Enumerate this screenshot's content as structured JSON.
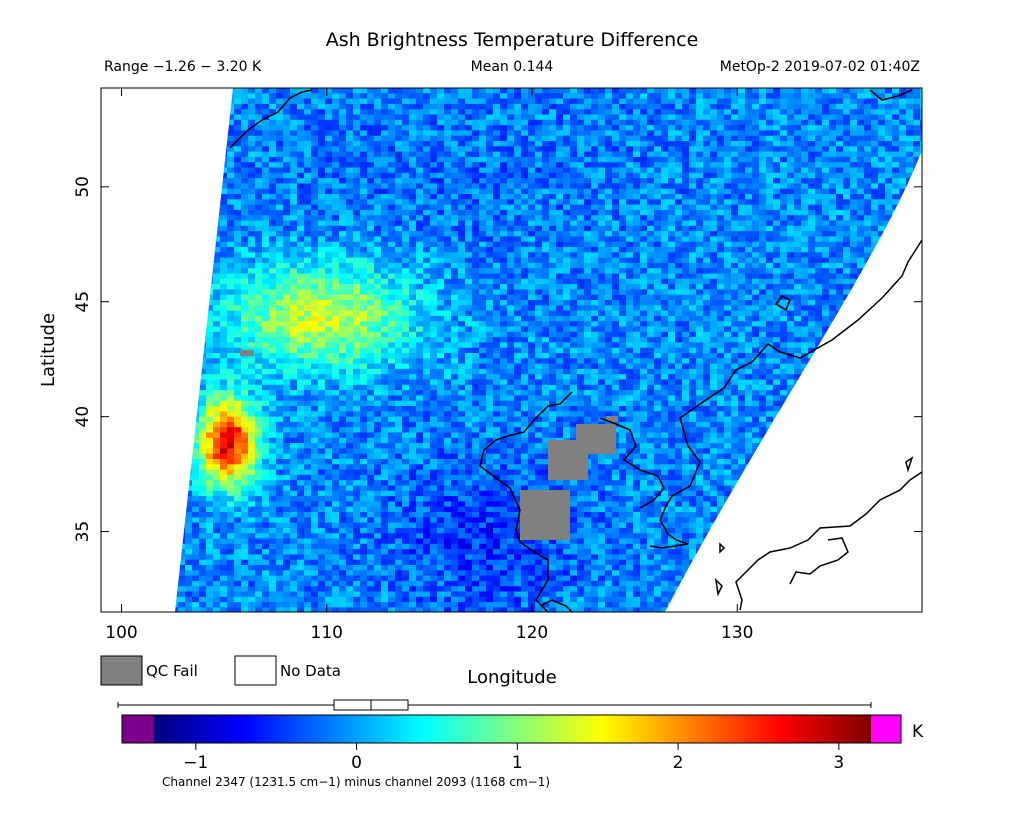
{
  "header": {
    "title": "Ash Brightness Temperature Difference",
    "range_text": "Range −1.26 − 3.20 K",
    "mean_text": "Mean 0.144",
    "satellite_text": "MetOp-2 2019-07-02 01:40Z"
  },
  "map": {
    "x_axis": {
      "label": "Longitude",
      "range": [
        99,
        139
      ],
      "ticks": [
        100,
        110,
        120,
        130
      ],
      "tick_labels": [
        "100",
        "110",
        "120",
        "130"
      ]
    },
    "y_axis": {
      "label": "Latitude",
      "range": [
        31.5,
        54.3
      ],
      "ticks": [
        35,
        40,
        45,
        50
      ],
      "tick_labels": [
        "35",
        "40",
        "45",
        "50"
      ]
    }
  },
  "legend": {
    "qc_fail_label": "QC Fail",
    "qc_fail_color": "#808080",
    "no_data_label": "No Data",
    "no_data_color": "#ffffff"
  },
  "colorbar": {
    "range": [
      -1.26,
      3.2
    ],
    "ticks": [
      -1,
      0,
      1,
      2,
      3
    ],
    "tick_labels": [
      "−1",
      "0",
      "1",
      "2",
      "3"
    ],
    "unit": "K",
    "under_color": "#7b0087",
    "over_color": "#ff00ff",
    "stops": [
      "#00007f",
      "#0000ff",
      "#007fff",
      "#00ffff",
      "#7fff7f",
      "#ffff00",
      "#ff7f00",
      "#ff0000",
      "#7f0000"
    ],
    "boxplot": {
      "min": -1.26,
      "q1": -0.14,
      "median": 0.09,
      "q3": 0.32,
      "max": 3.2
    }
  },
  "footer": {
    "channel_text": "Channel 2347 (1231.5 cm−1) minus channel 2093 (1168 cm−1)"
  },
  "chart_data": {
    "type": "heatmap",
    "title": "Ash Brightness Temperature Difference",
    "xlabel": "Longitude",
    "ylabel": "Latitude",
    "xlim": [
      99,
      139
    ],
    "ylim": [
      31.5,
      54.3
    ],
    "colorbar_range": [
      -1.26,
      3.2
    ],
    "unit": "K",
    "mean": 0.144,
    "regions": [
      {
        "lon": [
          104,
          106
        ],
        "lat": [
          37.5,
          40.5
        ],
        "value": 2.8
      },
      {
        "lon": [
          105,
          114
        ],
        "lat": [
          42.5,
          46.5
        ],
        "value": 1.3
      },
      {
        "lon": [
          113,
          122
        ],
        "lat": [
          32,
          38
        ],
        "value": -0.5
      },
      {
        "lon": [
          104,
          126
        ],
        "lat": [
          47,
          54
        ],
        "value": -0.2
      }
    ]
  }
}
